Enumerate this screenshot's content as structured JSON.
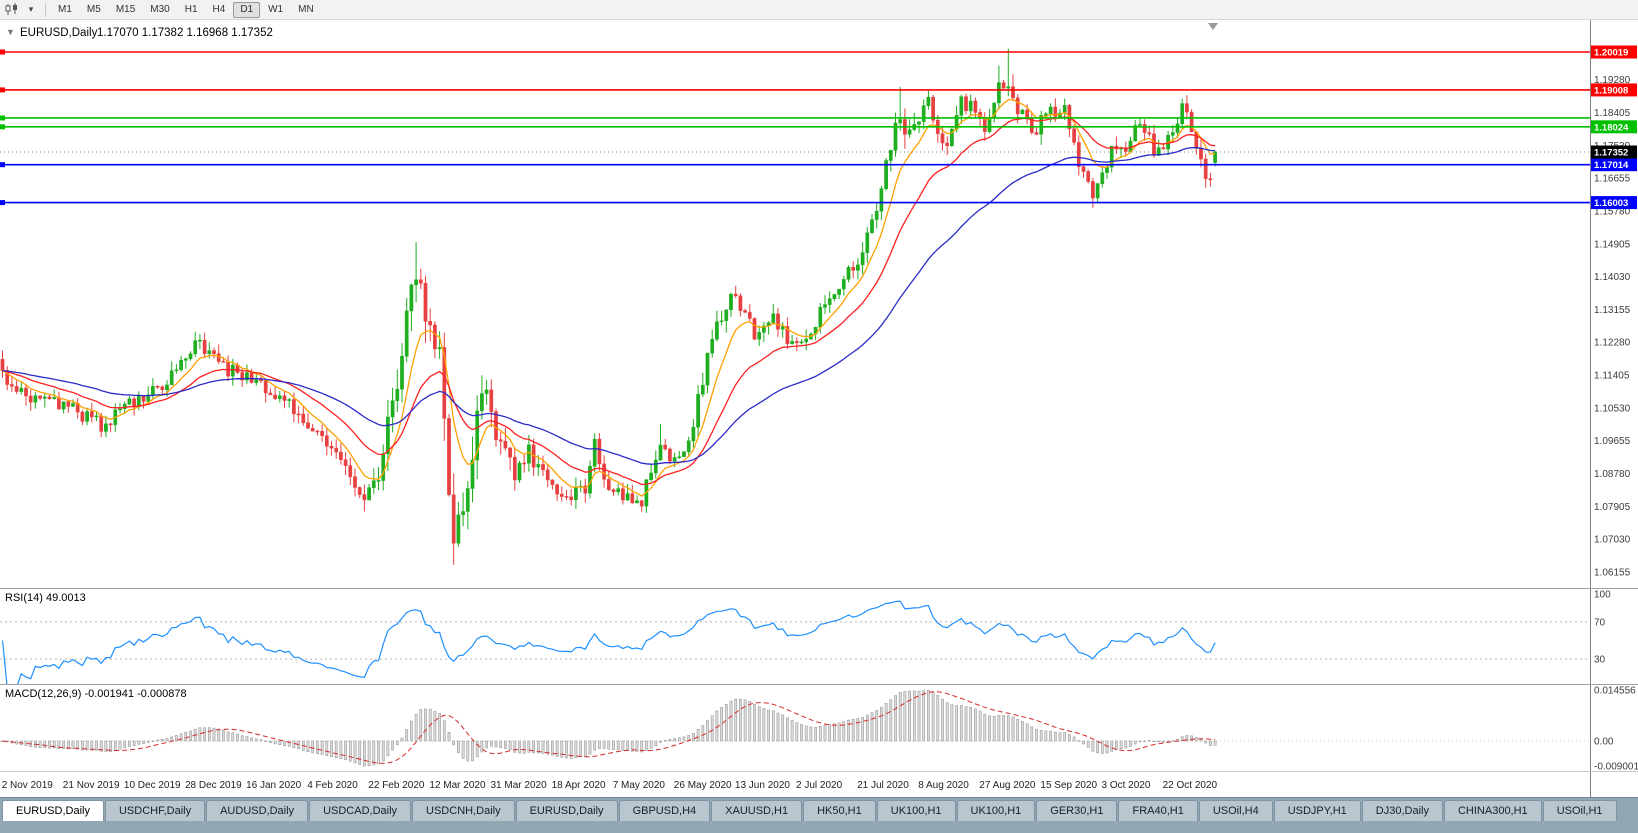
{
  "toolbar": {
    "timeframes": [
      "M1",
      "M5",
      "M15",
      "M30",
      "H1",
      "H4",
      "D1",
      "W1",
      "MN"
    ],
    "active_timeframe": "D1",
    "icons": [
      "candlestick-chart-icon",
      "caret-down-icon"
    ]
  },
  "chart": {
    "header_symbol": "EURUSD,Daily",
    "header_ohlc": "1.17070 1.17382 1.16968 1.17352",
    "one_click_glyph": "▼",
    "current_price_label": "1.17352"
  },
  "rsi_pane": {
    "label": "RSI(14) 49.0013"
  },
  "macd_pane": {
    "label": "MACD(12,26,9) -0.001941 -0.000878"
  },
  "tabs": [
    {
      "label": "EURUSD,Daily",
      "active": true
    },
    {
      "label": "USDCHF,Daily",
      "active": false
    },
    {
      "label": "AUDUSD,Daily",
      "active": false
    },
    {
      "label": "USDCAD,Daily",
      "active": false
    },
    {
      "label": "USDCNH,Daily",
      "active": false
    },
    {
      "label": "EURUSD,Daily",
      "active": false
    },
    {
      "label": "GBPUSD,H4",
      "active": false
    },
    {
      "label": "XAUUSD,H1",
      "active": false
    },
    {
      "label": "HK50,H1",
      "active": false
    },
    {
      "label": "UK100,H1",
      "active": false
    },
    {
      "label": "UK100,H1",
      "active": false
    },
    {
      "label": "GER30,H1",
      "active": false
    },
    {
      "label": "FRA40,H1",
      "active": false
    },
    {
      "label": "USOil,H4",
      "active": false
    },
    {
      "label": "USDJPY,H1",
      "active": false
    },
    {
      "label": "DJ30,Daily",
      "active": false
    },
    {
      "label": "CHINA300,H1",
      "active": false
    },
    {
      "label": "USOil,H1",
      "active": false
    }
  ],
  "chart_data": {
    "type": "candlestick",
    "symbol": "EURUSD",
    "timeframe": "Daily",
    "bars_visible": 259,
    "current": {
      "open": 1.1707,
      "high": 1.17382,
      "low": 1.16968,
      "close": 1.17352
    },
    "up_color": "#1FAE1F",
    "down_color": "#E84040",
    "price_ticks": [
      "1.19280",
      "1.18405",
      "1.17530",
      "1.16655",
      "1.15780",
      "1.14905",
      "1.14030",
      "1.13155",
      "1.12280",
      "1.11405",
      "1.10530",
      "1.09655",
      "1.08780",
      "1.07905",
      "1.07030",
      "1.06155"
    ],
    "rsi_ticks": [
      {
        "label": "100",
        "value": 100
      },
      {
        "label": "70",
        "value": 70
      },
      {
        "label": "30",
        "value": 30
      }
    ],
    "macd_ticks": [
      {
        "label": "0.014556",
        "value": 0.014556
      },
      {
        "label": "0.00",
        "value": 0
      },
      {
        "label": "-0.009001",
        "value": -0.009001
      }
    ],
    "date_labels": [
      "2 Nov 2019",
      "21 Nov 2019",
      "10 Dec 2019",
      "28 Dec 2019",
      "16 Jan 2020",
      "4 Feb 2020",
      "22 Feb 2020",
      "12 Mar 2020",
      "31 Mar 2020",
      "18 Apr 2020",
      "7 May 2020",
      "26 May 2020",
      "13 Jun 2020",
      "2 Jul 2020",
      "21 Jul 2020",
      "8 Aug 2020",
      "27 Aug 2020",
      "15 Sep 2020",
      "3 Oct 2020",
      "22 Oct 2020"
    ],
    "horizontal_lines": [
      {
        "price": 1.20019,
        "color": "#FF0000",
        "badge": "1.20019"
      },
      {
        "price": 1.19008,
        "color": "#FF0000",
        "badge": "1.19008"
      },
      {
        "price": 1.1826,
        "color": "#00C000",
        "badge": null
      },
      {
        "price": 1.18024,
        "color": "#00C000",
        "badge": "1.18024"
      },
      {
        "price": 1.17014,
        "color": "#0000FF",
        "badge": "1.17014"
      },
      {
        "price": 1.16003,
        "color": "#0000FF",
        "badge": "1.16003"
      }
    ],
    "indicators": {
      "ma_fast": {
        "type": "ema",
        "period": 8,
        "color": "#FFA000"
      },
      "ma_mid": {
        "type": "ema",
        "period": 21,
        "color": "#FF2020"
      },
      "ma_slow": {
        "type": "ema",
        "period": 50,
        "color": "#2B2BC8"
      },
      "rsi": {
        "period": 14,
        "value": 49.0013,
        "color": "#1E90FF",
        "levels": [
          70,
          30
        ]
      },
      "macd": {
        "fast": 12,
        "slow": 26,
        "signal": 9,
        "value": -0.001941,
        "signal_value": -0.000878,
        "signal_color": "#D62A2A",
        "hist_color": "#DADADA"
      }
    },
    "price_path_anchors": [
      [
        0,
        1.1145,
        1
      ],
      [
        6,
        1.1078,
        1
      ],
      [
        13,
        1.1062,
        1
      ],
      [
        21,
        1.1005,
        1
      ],
      [
        27,
        1.1068,
        1
      ],
      [
        34,
        1.1118,
        1
      ],
      [
        42,
        1.1228,
        1
      ],
      [
        46,
        1.1162,
        1
      ],
      [
        53,
        1.1128,
        1
      ],
      [
        60,
        1.1072,
        1
      ],
      [
        66,
        1.1002,
        1
      ],
      [
        71,
        1.0925,
        1
      ],
      [
        77,
        1.0792,
        1.3
      ],
      [
        80,
        1.0888,
        1.8
      ],
      [
        84,
        1.1132,
        2.2
      ],
      [
        88,
        1.1438,
        2.4
      ],
      [
        90,
        1.1288,
        2.4
      ],
      [
        93,
        1.1178,
        2.4
      ],
      [
        96,
        1.0702,
        2.6
      ],
      [
        98,
        1.0772,
        2.4
      ],
      [
        101,
        1.1028,
        2
      ],
      [
        103,
        1.1102,
        1.8
      ],
      [
        106,
        1.0942,
        1.6
      ],
      [
        109,
        1.0882,
        1.3
      ],
      [
        112,
        1.0932,
        1.2
      ],
      [
        116,
        1.0862,
        1.1
      ],
      [
        120,
        1.0822,
        1
      ],
      [
        124,
        1.0838,
        1
      ],
      [
        126,
        1.0948,
        1.1
      ],
      [
        129,
        1.0848,
        1
      ],
      [
        133,
        1.0818,
        1
      ],
      [
        136,
        1.0802,
        1
      ],
      [
        140,
        1.0972,
        1.1
      ],
      [
        143,
        1.0902,
        1
      ],
      [
        146,
        1.0962,
        1.1
      ],
      [
        149,
        1.1132,
        1.3
      ],
      [
        152,
        1.1282,
        1.3
      ],
      [
        155,
        1.1368,
        1.3
      ],
      [
        158,
        1.1322,
        1.1
      ],
      [
        160,
        1.1248,
        1.1
      ],
      [
        164,
        1.1302,
        1.1
      ],
      [
        167,
        1.1222,
        1
      ],
      [
        171,
        1.1242,
        1
      ],
      [
        175,
        1.1328,
        1
      ],
      [
        179,
        1.1398,
        1
      ],
      [
        183,
        1.1448,
        1.1
      ],
      [
        187,
        1.1648,
        1.4
      ],
      [
        191,
        1.1838,
        1.5
      ],
      [
        193,
        1.1772,
        1.3
      ],
      [
        197,
        1.1868,
        1.2
      ],
      [
        200,
        1.1742,
        1.1
      ],
      [
        204,
        1.1862,
        1.1
      ],
      [
        207,
        1.1848,
        1
      ],
      [
        209,
        1.1788,
        1
      ],
      [
        212,
        1.1902,
        1.3
      ],
      [
        214,
        1.1928,
        1.5
      ],
      [
        216,
        1.1852,
        1.2
      ],
      [
        219,
        1.1782,
        1.1
      ],
      [
        222,
        1.1848,
        1
      ],
      [
        226,
        1.1842,
        1
      ],
      [
        229,
        1.1702,
        1.1
      ],
      [
        232,
        1.1632,
        1.1
      ],
      [
        236,
        1.1742,
        1.1
      ],
      [
        239,
        1.1732,
        1
      ],
      [
        242,
        1.1828,
        1
      ],
      [
        245,
        1.1742,
        1
      ],
      [
        248,
        1.1768,
        1
      ],
      [
        251,
        1.1852,
        1
      ],
      [
        253,
        1.1798,
        1
      ],
      [
        255,
        1.1718,
        1.1
      ],
      [
        256,
        1.1652,
        1.1
      ],
      [
        257,
        1.1682,
        1
      ],
      [
        258,
        1.17352,
        1
      ]
    ],
    "spikes": [
      {
        "i": 77,
        "low": 1.0778
      },
      {
        "i": 88,
        "high": 1.1495
      },
      {
        "i": 96,
        "low": 1.0636
      },
      {
        "i": 140,
        "high": 1.101
      },
      {
        "i": 191,
        "high": 1.1909
      },
      {
        "i": 212,
        "high": 1.1966
      },
      {
        "i": 214,
        "high": 1.2011
      },
      {
        "i": 232,
        "low": 1.1612
      },
      {
        "i": 256,
        "low": 1.164
      }
    ]
  }
}
